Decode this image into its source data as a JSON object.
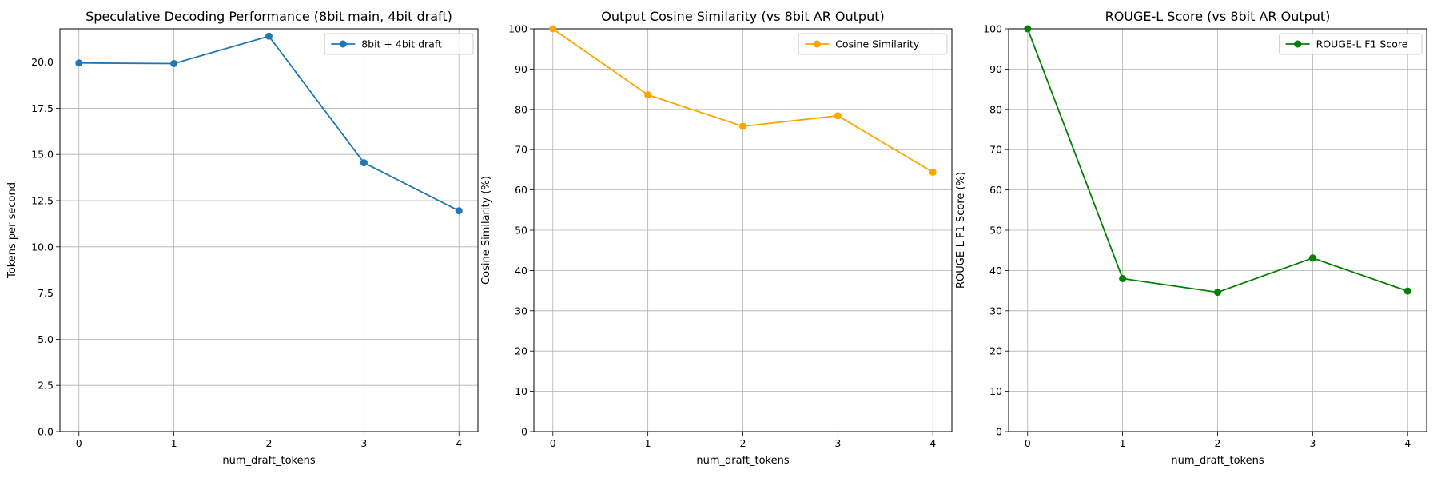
{
  "chart_data": [
    {
      "type": "line",
      "title": "Speculative Decoding Performance (8bit main, 4bit draft)",
      "xlabel": "num_draft_tokens",
      "ylabel": "Tokens per second",
      "x": [
        0,
        1,
        2,
        3,
        4
      ],
      "xticks": [
        "0",
        "1",
        "2",
        "3",
        "4"
      ],
      "xlim": [
        -0.2,
        4.2
      ],
      "ylim": [
        0,
        21.8
      ],
      "yticks": [
        "0.0",
        "2.5",
        "5.0",
        "7.5",
        "10.0",
        "12.5",
        "15.0",
        "17.5",
        "20.0"
      ],
      "grid": true,
      "legend_position": "top-right",
      "series": [
        {
          "name": "8bit + 4bit draft",
          "color": "#1f77b4",
          "values": [
            19.95,
            19.92,
            21.4,
            14.55,
            11.95
          ]
        }
      ]
    },
    {
      "type": "line",
      "title": "Output Cosine Similarity (vs 8bit AR Output)",
      "xlabel": "num_draft_tokens",
      "ylabel": "Cosine Similarity (%)",
      "x": [
        0,
        1,
        2,
        3,
        4
      ],
      "xticks": [
        "0",
        "1",
        "2",
        "3",
        "4"
      ],
      "xlim": [
        -0.2,
        4.2
      ],
      "ylim": [
        0,
        100
      ],
      "yticks": [
        "0",
        "10",
        "20",
        "30",
        "40",
        "50",
        "60",
        "70",
        "80",
        "90",
        "100"
      ],
      "grid": true,
      "legend_position": "top-right",
      "series": [
        {
          "name": "Cosine Similarity",
          "color": "#ffa500",
          "values": [
            100,
            83.6,
            75.8,
            78.4,
            64.4
          ]
        }
      ]
    },
    {
      "type": "line",
      "title": "ROUGE-L Score (vs 8bit AR Output)",
      "xlabel": "num_draft_tokens",
      "ylabel": "ROUGE-L F1 Score (%)",
      "x": [
        0,
        1,
        2,
        3,
        4
      ],
      "xticks": [
        "0",
        "1",
        "2",
        "3",
        "4"
      ],
      "xlim": [
        -0.2,
        4.2
      ],
      "ylim": [
        0,
        100
      ],
      "yticks": [
        "0",
        "10",
        "20",
        "30",
        "40",
        "50",
        "60",
        "70",
        "80",
        "90",
        "100"
      ],
      "grid": true,
      "legend_position": "top-right",
      "series": [
        {
          "name": "ROUGE-L F1 Score",
          "color": "#008000",
          "values": [
            100,
            38.0,
            34.6,
            43.1,
            34.9
          ]
        }
      ]
    }
  ]
}
